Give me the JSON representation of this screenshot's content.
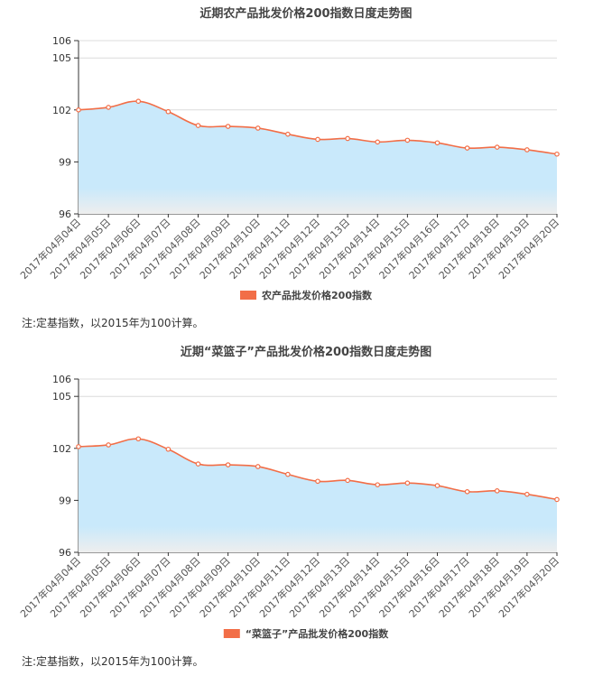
{
  "charts": [
    {
      "note": "注:定基指数，以2015年为100计算。",
      "chart_data": {
        "type": "area",
        "title": "近期农产品批发价格200指数日度走势图",
        "xlabel": "",
        "ylabel": "",
        "categories": [
          "2017年04月04日",
          "2017年04月05日",
          "2017年04月06日",
          "2017年04月07日",
          "2017年04月08日",
          "2017年04月09日",
          "2017年04月10日",
          "2017年04月11日",
          "2017年04月12日",
          "2017年04月13日",
          "2017年04月14日",
          "2017年04月15日",
          "2017年04月16日",
          "2017年04月17日",
          "2017年04月18日",
          "2017年04月19日",
          "2017年04月20日"
        ],
        "series": [
          {
            "name": "农产品批发价格200指数",
            "values": [
              102.0,
              102.15,
              102.5,
              101.9,
              101.1,
              101.05,
              100.95,
              100.6,
              100.3,
              100.35,
              100.15,
              100.25,
              100.1,
              99.8,
              99.85,
              99.7,
              99.45
            ],
            "color": "#f26e47"
          }
        ],
        "ylim": [
          96,
          106
        ],
        "yticks": [
          96,
          99,
          102,
          105,
          106
        ],
        "grid": true,
        "legend_position": "bottom",
        "fill_color": "#c9e9fb"
      }
    },
    {
      "note": "注:定基指数，以2015年为100计算。",
      "chart_data": {
        "type": "area",
        "title": "近期“菜篮子”产品批发价格200指数日度走势图",
        "xlabel": "",
        "ylabel": "",
        "categories": [
          "2017年04月04日",
          "2017年04月05日",
          "2017年04月06日",
          "2017年04月07日",
          "2017年04月08日",
          "2017年04月09日",
          "2017年04月10日",
          "2017年04月11日",
          "2017年04月12日",
          "2017年04月13日",
          "2017年04月14日",
          "2017年04月15日",
          "2017年04月16日",
          "2017年04月17日",
          "2017年04月18日",
          "2017年04月19日",
          "2017年04月20日"
        ],
        "series": [
          {
            "name": "“菜篮子”产品批发价格200指数",
            "values": [
              102.1,
              102.2,
              102.55,
              101.95,
              101.1,
              101.05,
              100.95,
              100.5,
              100.1,
              100.15,
              99.9,
              100.0,
              99.85,
              99.5,
              99.55,
              99.35,
              99.05
            ],
            "color": "#f26e47"
          }
        ],
        "ylim": [
          96,
          106
        ],
        "yticks": [
          96,
          99,
          102,
          105,
          106
        ],
        "grid": true,
        "legend_position": "bottom",
        "fill_color": "#c9e9fb"
      }
    }
  ]
}
